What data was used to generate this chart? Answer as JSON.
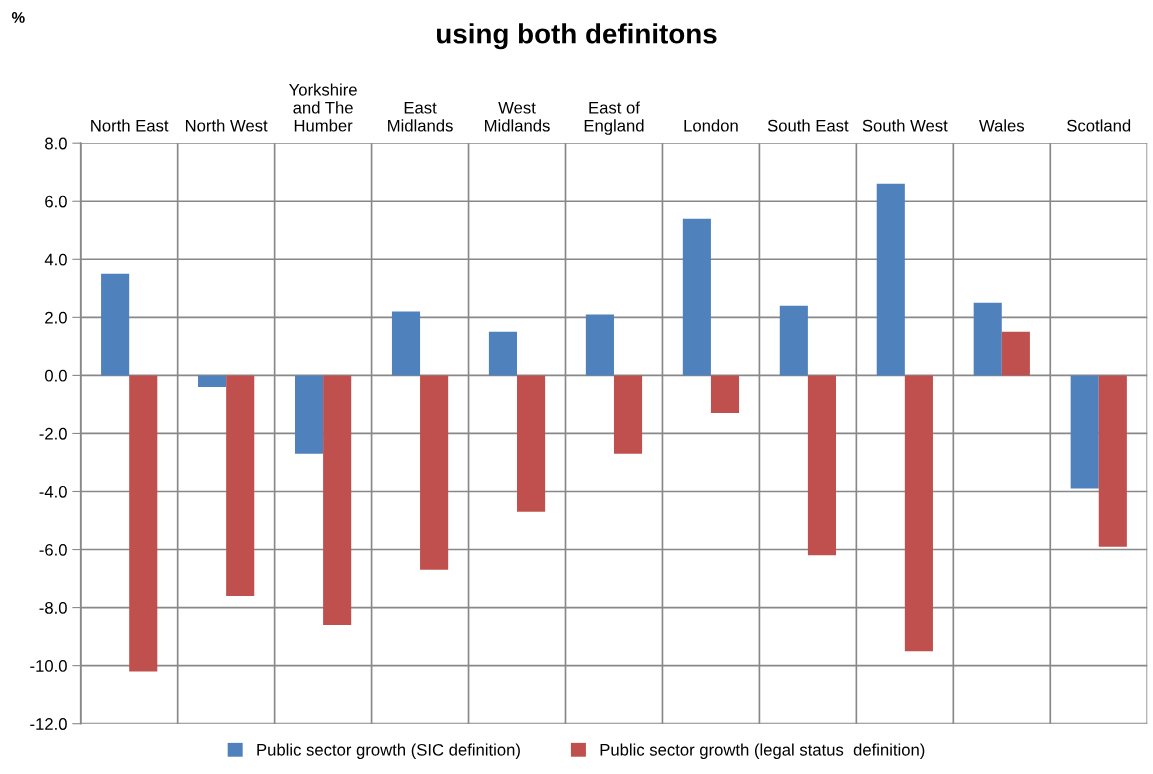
{
  "chart_data": {
    "type": "bar",
    "title": "using both definitons",
    "ylabel": "%",
    "categories": [
      "North East",
      "North West",
      "Yorkshire\nand The\nHumber",
      "East\nMidlands",
      "West\nMidlands",
      "East of\nEngland",
      "London",
      "South East",
      "South West",
      "Wales",
      "Scotland"
    ],
    "series": [
      {
        "name": "Public sector growth (SIC definition)",
        "color": "#4f81bd",
        "values": [
          3.5,
          -0.4,
          -2.7,
          2.2,
          1.5,
          2.1,
          5.4,
          2.4,
          6.6,
          2.5,
          -3.9
        ]
      },
      {
        "name": "Public sector growth (legal status  definition)",
        "color": "#c0504d",
        "values": [
          -10.2,
          -7.6,
          -8.6,
          -6.7,
          -4.7,
          -2.7,
          -1.3,
          -6.2,
          -9.5,
          1.5,
          -5.9
        ]
      }
    ],
    "ylim": [
      -12,
      8
    ],
    "yticks": [
      {
        "value": -12,
        "label": "-12.0"
      },
      {
        "value": -10,
        "label": "-10.0"
      },
      {
        "value": -8,
        "label": "-8.0"
      },
      {
        "value": -6,
        "label": "-6.0"
      },
      {
        "value": -4,
        "label": "-4.0"
      },
      {
        "value": -2,
        "label": "-2.0"
      },
      {
        "value": 0,
        "label": "0.0"
      },
      {
        "value": 2,
        "label": "2.0"
      },
      {
        "value": 4,
        "label": "4.0"
      },
      {
        "value": 6,
        "label": "6.0"
      },
      {
        "value": 8,
        "label": "8.0"
      }
    ],
    "grid": true,
    "legend": "bottom"
  }
}
